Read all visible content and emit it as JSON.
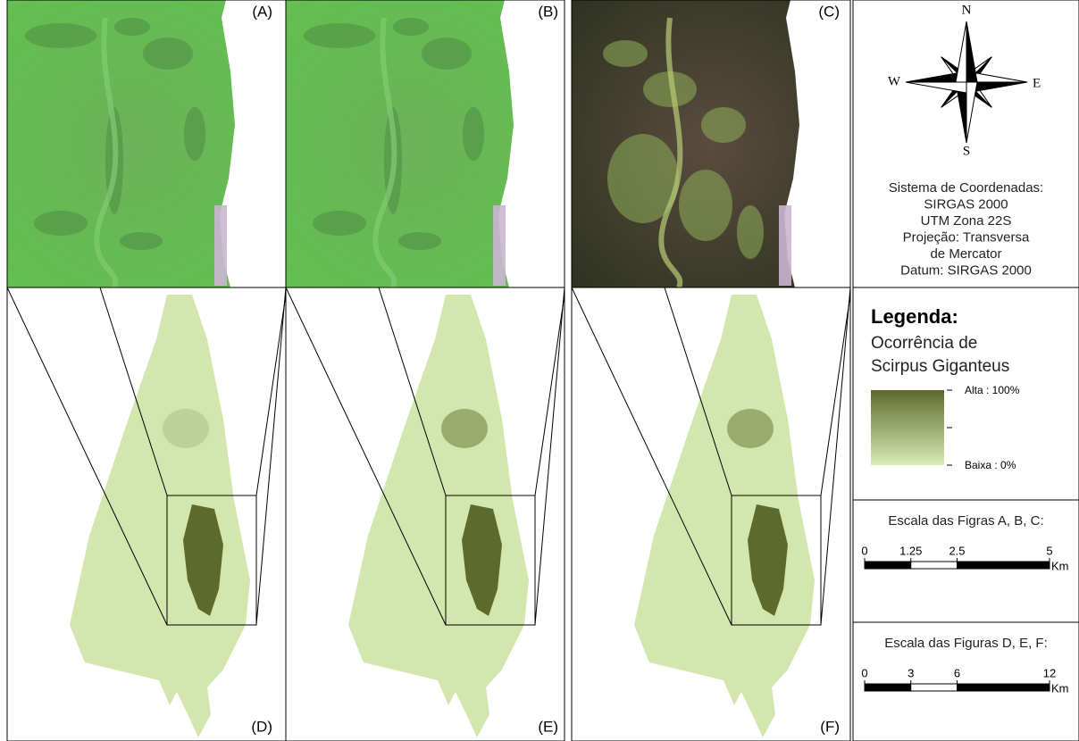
{
  "panels": [
    {
      "label": "(A)"
    },
    {
      "label": "(B)"
    },
    {
      "label": "(C)"
    },
    {
      "label": "(D)"
    },
    {
      "label": "(E)"
    },
    {
      "label": "(F)"
    }
  ],
  "north_arrow": {
    "n": "N",
    "s": "S",
    "e": "E",
    "w": "W"
  },
  "coordinate_system": {
    "lines": [
      "Sistema de Coordenadas:",
      "SIRGAS 2000",
      "UTM Zona 22S",
      "Projeção: Transversa",
      "de Mercator",
      "Datum: SIRGAS 2000"
    ]
  },
  "legend": {
    "title": "Legenda:",
    "subtitle_lines": [
      "Ocorrência de",
      "Scirpus Giganteus"
    ],
    "high": "Alta : 100%",
    "low": "Baixa : 0%"
  },
  "scale_bars": [
    {
      "title": "Escala das Figras A, B, C:",
      "ticks": [
        0,
        1.25,
        2.5,
        5
      ],
      "unit": "Km"
    },
    {
      "title": "Escala das Figuras D, E, F:",
      "ticks": [
        0,
        3,
        6,
        12
      ],
      "unit": "Km"
    }
  ]
}
